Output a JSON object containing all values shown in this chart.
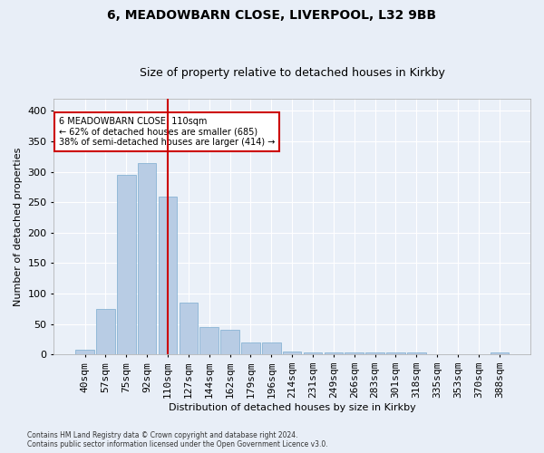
{
  "title1": "6, MEADOWBARN CLOSE, LIVERPOOL, L32 9BB",
  "title2": "Size of property relative to detached houses in Kirkby",
  "xlabel": "Distribution of detached houses by size in Kirkby",
  "ylabel": "Number of detached properties",
  "categories": [
    "40sqm",
    "57sqm",
    "75sqm",
    "92sqm",
    "110sqm",
    "127sqm",
    "144sqm",
    "162sqm",
    "179sqm",
    "196sqm",
    "214sqm",
    "231sqm",
    "249sqm",
    "266sqm",
    "283sqm",
    "301sqm",
    "318sqm",
    "335sqm",
    "353sqm",
    "370sqm",
    "388sqm"
  ],
  "values": [
    8,
    75,
    295,
    315,
    260,
    85,
    45,
    40,
    20,
    20,
    5,
    3,
    3,
    3,
    3,
    3,
    3,
    0,
    0,
    0,
    3
  ],
  "bar_color": "#b8cce4",
  "bar_edge_color": "#7aaccf",
  "vline_x_index": 4,
  "vline_color": "#cc0000",
  "annotation_text": "6 MEADOWBARN CLOSE: 110sqm\n← 62% of detached houses are smaller (685)\n38% of semi-detached houses are larger (414) →",
  "annotation_box_color": "white",
  "annotation_box_edge_color": "#cc0000",
  "footnote1": "Contains HM Land Registry data © Crown copyright and database right 2024.",
  "footnote2": "Contains public sector information licensed under the Open Government Licence v3.0.",
  "bg_color": "#e8eef7",
  "plot_bg_color": "#eaf0f8",
  "ylim": [
    0,
    420
  ],
  "yticks": [
    0,
    50,
    100,
    150,
    200,
    250,
    300,
    350,
    400
  ],
  "title1_fontsize": 10,
  "title2_fontsize": 9,
  "xlabel_fontsize": 8,
  "ylabel_fontsize": 8,
  "tick_fontsize": 8,
  "annot_fontsize": 7,
  "footnote_fontsize": 5.5
}
